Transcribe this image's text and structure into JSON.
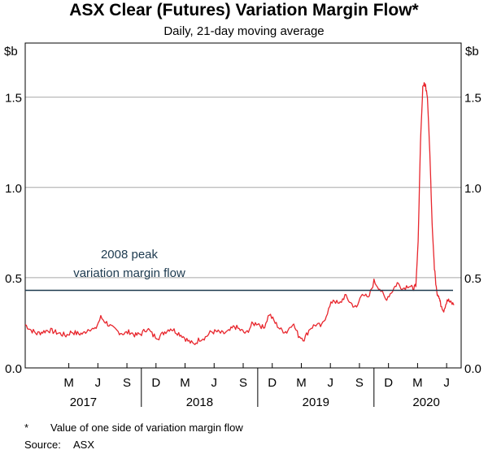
{
  "chart_data": {
    "type": "line",
    "title": "ASX Clear (Futures) Variation Margin Flow*",
    "subtitle": "Daily, 21-day moving average",
    "ylabel_left": "$b",
    "ylabel_right": "$b",
    "ylim": [
      0,
      1.8
    ],
    "yticks": [
      0.0,
      0.5,
      1.0,
      1.5
    ],
    "ytick_labels": [
      "0.0",
      "0.5",
      "1.0",
      "1.5"
    ],
    "xlim": [
      2017.0,
      2020.75
    ],
    "month_ticks": [
      {
        "label": "M",
        "t": 2017.375
      },
      {
        "label": "J",
        "t": 2017.625
      },
      {
        "label": "S",
        "t": 2017.875
      },
      {
        "label": "D",
        "t": 2018.125
      },
      {
        "label": "M",
        "t": 2018.375
      },
      {
        "label": "J",
        "t": 2018.625
      },
      {
        "label": "S",
        "t": 2018.875
      },
      {
        "label": "D",
        "t": 2019.125
      },
      {
        "label": "M",
        "t": 2019.375
      },
      {
        "label": "J",
        "t": 2019.625
      },
      {
        "label": "S",
        "t": 2019.875
      },
      {
        "label": "D",
        "t": 2020.125
      },
      {
        "label": "M",
        "t": 2020.375
      },
      {
        "label": "J",
        "t": 2020.625
      }
    ],
    "year_labels": [
      {
        "label": "2017",
        "t": 2017.5
      },
      {
        "label": "2018",
        "t": 2018.5
      },
      {
        "label": "2019",
        "t": 2019.5
      },
      {
        "label": "2020",
        "t": 2020.45
      }
    ],
    "year_separators": [
      2017.999,
      2019.0,
      2020.0
    ],
    "reference_line": {
      "value": 0.43,
      "label_line1": "2008 peak",
      "label_line2": "variation margin flow",
      "color": "#1d3a4f"
    },
    "series": [
      {
        "name": "Variation margin flow",
        "color": "#e8262d",
        "x": [
          2017.0,
          2017.05,
          2017.1,
          2017.15,
          2017.2,
          2017.25,
          2017.3,
          2017.35,
          2017.4,
          2017.45,
          2017.5,
          2017.55,
          2017.6,
          2017.65,
          2017.7,
          2017.75,
          2017.8,
          2017.85,
          2017.9,
          2017.95,
          2018.0,
          2018.05,
          2018.1,
          2018.15,
          2018.2,
          2018.25,
          2018.3,
          2018.35,
          2018.4,
          2018.45,
          2018.5,
          2018.55,
          2018.6,
          2018.65,
          2018.7,
          2018.75,
          2018.8,
          2018.85,
          2018.9,
          2018.95,
          2019.0,
          2019.05,
          2019.1,
          2019.15,
          2019.2,
          2019.25,
          2019.3,
          2019.35,
          2019.4,
          2019.45,
          2019.5,
          2019.55,
          2019.6,
          2019.65,
          2019.7,
          2019.75,
          2019.8,
          2019.85,
          2019.9,
          2019.95,
          2020.0,
          2020.05,
          2020.1,
          2020.15,
          2020.2,
          2020.25,
          2020.3,
          2020.33,
          2020.36,
          2020.39,
          2020.42,
          2020.45,
          2020.48,
          2020.51,
          2020.54,
          2020.57,
          2020.6,
          2020.63,
          2020.66,
          2020.69
        ],
        "values": [
          0.24,
          0.21,
          0.19,
          0.2,
          0.21,
          0.2,
          0.19,
          0.18,
          0.2,
          0.19,
          0.19,
          0.22,
          0.21,
          0.28,
          0.25,
          0.22,
          0.2,
          0.19,
          0.2,
          0.18,
          0.19,
          0.22,
          0.18,
          0.17,
          0.2,
          0.22,
          0.2,
          0.18,
          0.15,
          0.13,
          0.16,
          0.17,
          0.2,
          0.2,
          0.19,
          0.2,
          0.23,
          0.21,
          0.19,
          0.24,
          0.25,
          0.22,
          0.3,
          0.25,
          0.21,
          0.2,
          0.25,
          0.18,
          0.16,
          0.22,
          0.24,
          0.23,
          0.31,
          0.38,
          0.35,
          0.4,
          0.36,
          0.33,
          0.42,
          0.38,
          0.48,
          0.44,
          0.38,
          0.42,
          0.47,
          0.44,
          0.46,
          0.44,
          0.5,
          0.52,
          0.47,
          0.4,
          0.35,
          0.32,
          0.44,
          0.36,
          0.32,
          0.38,
          0.36,
          0.35
        ]
      }
    ]
  },
  "spike": {
    "x": [
      2020.36,
      2020.38,
      2020.4,
      2020.42,
      2020.44,
      2020.46,
      2020.48,
      2020.5,
      2020.52,
      2020.54,
      2020.56
    ],
    "values": [
      0.45,
      0.7,
      1.25,
      1.55,
      1.58,
      1.5,
      1.2,
      0.8,
      0.55,
      0.42,
      0.4
    ]
  },
  "footnote": {
    "marker": "*",
    "text": "Value of one side of variation margin flow"
  },
  "source": {
    "label": "Source:",
    "text": "ASX"
  }
}
